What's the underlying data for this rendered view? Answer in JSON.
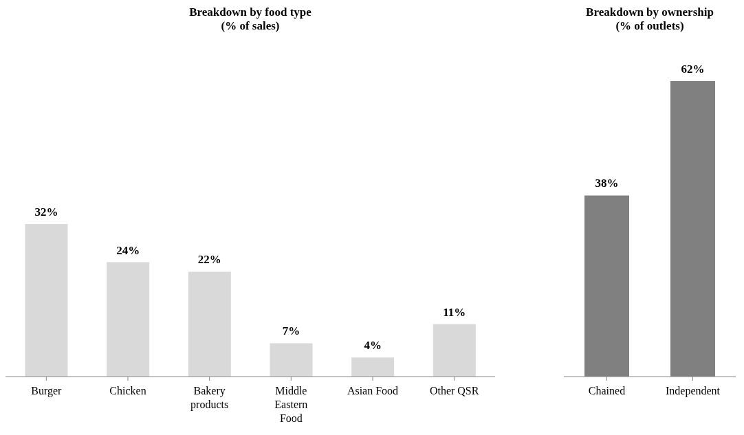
{
  "chart_data": [
    {
      "type": "bar",
      "title": "Breakdown by food type\n(% of sales)",
      "categories": [
        "Burger",
        "Chicken",
        "Bakery products",
        "Middle Eastern Food",
        "Asian Food",
        "Other QSR"
      ],
      "values": [
        32,
        24,
        22,
        7,
        4,
        11
      ],
      "value_labels": [
        "32%",
        "24%",
        "22%",
        "7%",
        "4%",
        "11%"
      ],
      "color": "#d9d9d9",
      "grid": false,
      "legend": false
    },
    {
      "type": "bar",
      "title": "Breakdown by ownership\n(% of outlets)",
      "categories": [
        "Chained",
        "Independent"
      ],
      "values": [
        38,
        62
      ],
      "value_labels": [
        "38%",
        "62%"
      ],
      "color": "#808080",
      "grid": false,
      "legend": false
    }
  ]
}
